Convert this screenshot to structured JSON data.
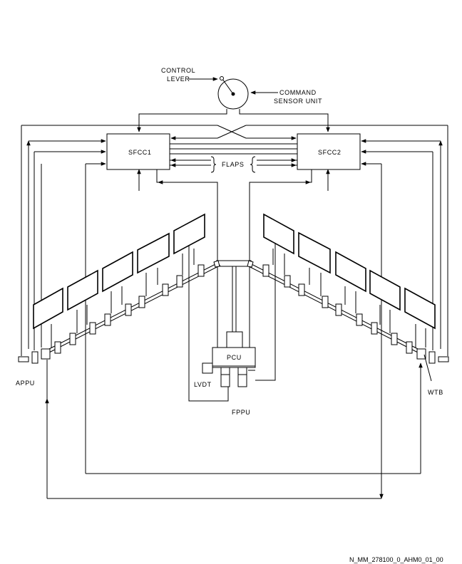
{
  "labels": {
    "control_lever_1": "CONTROL",
    "control_lever_2": "LEVER",
    "csu_1": "COMMAND",
    "csu_2": "SENSOR UNIT",
    "sfcc1": "SFCC1",
    "sfcc2": "SFCC2",
    "flaps": "FLAPS",
    "pcu": "PCU",
    "lvdt": "LVDT",
    "fppu": "FPPU",
    "appu": "APPU",
    "wtb": "WTB"
  },
  "footer": {
    "drawing_id": "N_MM_278100_0_AHM0_01_00"
  }
}
